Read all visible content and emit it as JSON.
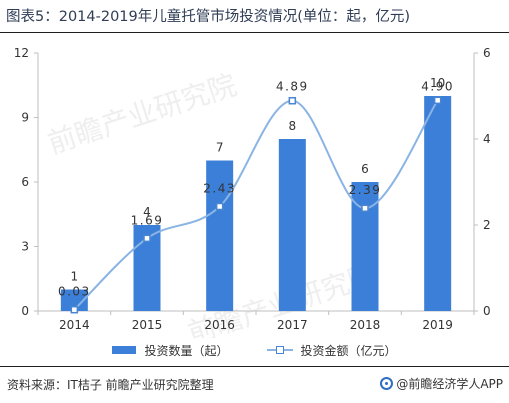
{
  "title": "图表5：2014-2019年儿童托管市场投资情况(单位：起，亿元)",
  "colors": {
    "bar": "#3b7fd9",
    "line": "#8ab4e3",
    "marker": "#4a86d0",
    "axis": "#bfbfbf"
  },
  "chart_data": {
    "type": "bar+line",
    "title": "图表5：2014-2019年儿童托管市场投资情况(单位：起，亿元)",
    "categories": [
      "2014",
      "2015",
      "2016",
      "2017",
      "2018",
      "2019"
    ],
    "series": [
      {
        "name": "投资数量（起）",
        "type": "bar",
        "axis": "left",
        "values": [
          1,
          4,
          7,
          8,
          6,
          10
        ],
        "labels": [
          "1",
          "4",
          "7",
          "8",
          "6",
          "10"
        ]
      },
      {
        "name": "投资金额（亿元）",
        "type": "line",
        "axis": "right",
        "smooth": true,
        "values": [
          0.03,
          1.69,
          2.43,
          4.89,
          2.39,
          4.9
        ],
        "labels": [
          "0.03",
          "1.69",
          "2.43",
          "4.89",
          "2.39",
          "4.90"
        ]
      }
    ],
    "y_left": {
      "min": 0,
      "max": 12,
      "ticks": [
        "0",
        "3",
        "6",
        "9",
        "12"
      ]
    },
    "y_right": {
      "min": 0,
      "max": 6,
      "ticks": [
        "0",
        "2",
        "4",
        "6"
      ]
    },
    "legend_position": "bottom-center",
    "grid": false
  },
  "watermark": "前瞻产业研究院",
  "footer": {
    "source": "资料来源：IT桔子 前瞻产业研究院整理",
    "brand": "@前瞻经济学人APP"
  }
}
